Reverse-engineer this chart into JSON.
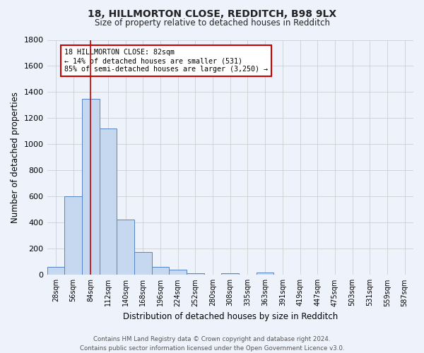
{
  "title": "18, HILLMORTON CLOSE, REDDITCH, B98 9LX",
  "subtitle": "Size of property relative to detached houses in Redditch",
  "xlabel": "Distribution of detached houses by size in Redditch",
  "ylabel": "Number of detached properties",
  "footer": "Contains HM Land Registry data © Crown copyright and database right 2024.\nContains public sector information licensed under the Open Government Licence v3.0.",
  "bar_categories": [
    "28sqm",
    "56sqm",
    "84sqm",
    "112sqm",
    "140sqm",
    "168sqm",
    "196sqm",
    "224sqm",
    "252sqm",
    "280sqm",
    "308sqm",
    "335sqm",
    "363sqm",
    "391sqm",
    "419sqm",
    "447sqm",
    "475sqm",
    "503sqm",
    "531sqm",
    "559sqm",
    "587sqm"
  ],
  "bar_values": [
    60,
    600,
    1350,
    1120,
    425,
    175,
    60,
    40,
    15,
    0,
    15,
    0,
    20,
    0,
    0,
    0,
    0,
    0,
    0,
    0,
    0
  ],
  "bar_color": "#c5d8f0",
  "bar_edge_color": "#5585c5",
  "ylim": [
    0,
    1800
  ],
  "yticks": [
    0,
    200,
    400,
    600,
    800,
    1000,
    1200,
    1400,
    1600,
    1800
  ],
  "property_line_x": 84,
  "property_line_color": "#cc0000",
  "annotation_text": "18 HILLMORTON CLOSE: 82sqm\n← 14% of detached houses are smaller (531)\n85% of semi-detached houses are larger (3,250) →",
  "annotation_box_color": "#cc0000",
  "bg_color": "#eef2fb",
  "grid_color": "#c8c8c8",
  "bin_width": 28,
  "n_bars": 21
}
